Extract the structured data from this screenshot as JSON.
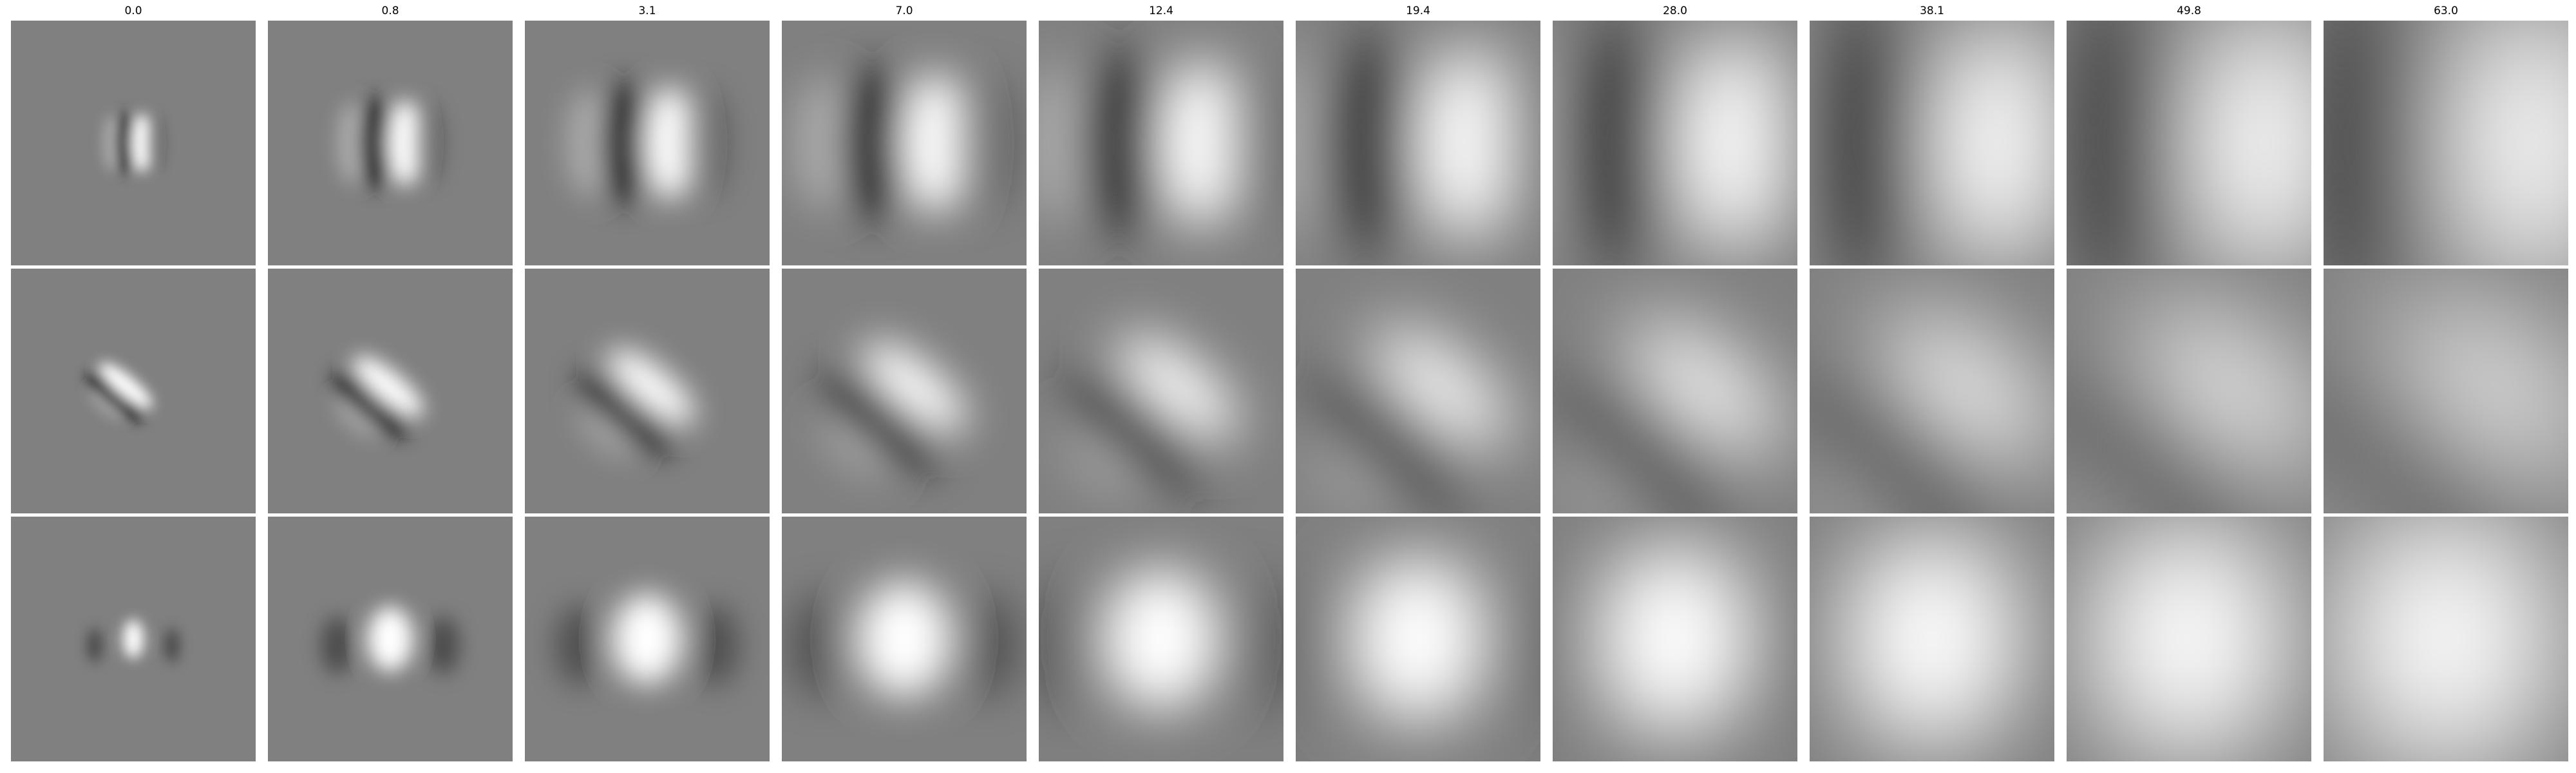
{
  "figure": {
    "column_titles": [
      "0.0",
      "0.8",
      "3.1",
      "7.0",
      "12.4",
      "19.4",
      "28.0",
      "38.1",
      "49.8",
      "63.0"
    ],
    "rows": 3,
    "colors": {
      "background": "#808080",
      "dark": "#000000",
      "light": "#ffffff",
      "separator": "#ffffff"
    }
  }
}
